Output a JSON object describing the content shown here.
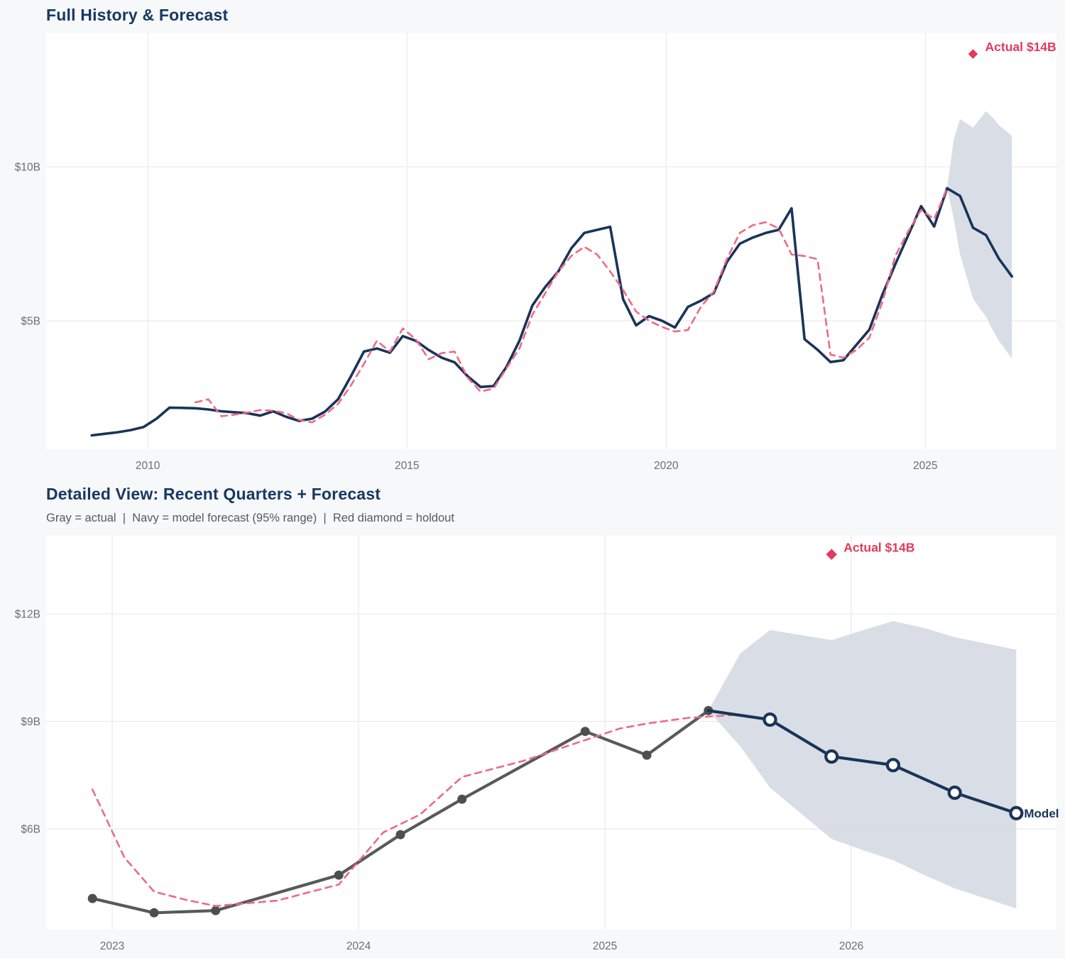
{
  "colors": {
    "page_bg": "#f7f8fa",
    "plot_bg": "#ffffff",
    "grid": "#e4e6e9",
    "navy": "#1a3458",
    "pink": "#ee6a87",
    "crimson": "#e23a5c",
    "gray_line": "#58595b",
    "gray_dot": "#4d4e50",
    "band": "#d4dae3",
    "title": "#173861",
    "subtitle": "#545a60",
    "tick": "#6a6f74"
  },
  "chart_data": [
    {
      "type": "line",
      "title": "Full History & Forecast",
      "xlabel": "",
      "ylabel": "",
      "grid": true,
      "legend_position": "none",
      "xlim": [
        2008.04,
        2027.53
      ],
      "ylim": [
        0.83,
        14.33
      ],
      "xticks": [
        2010,
        2015,
        2020,
        2025
      ],
      "xtick_labels": [
        "2010",
        "2015",
        "2020",
        "2025"
      ],
      "yticks": [
        5,
        10
      ],
      "ytick_labels": [
        "$5B",
        "$10B"
      ],
      "annotation": {
        "label": "Actual $14B",
        "x": 2025.92,
        "y": 13.66
      },
      "series": [
        {
          "name": "actual-history",
          "color_key": "navy",
          "style": "solid",
          "markers": "none",
          "points": [
            [
              2008.92,
              1.28
            ],
            [
              2009.17,
              1.33
            ],
            [
              2009.42,
              1.38
            ],
            [
              2009.67,
              1.45
            ],
            [
              2009.92,
              1.55
            ],
            [
              2010.17,
              1.82
            ],
            [
              2010.42,
              2.18
            ],
            [
              2010.67,
              2.17
            ],
            [
              2010.92,
              2.16
            ],
            [
              2011.17,
              2.12
            ],
            [
              2011.42,
              2.06
            ],
            [
              2011.67,
              2.03
            ],
            [
              2011.92,
              2.0
            ],
            [
              2012.17,
              1.92
            ],
            [
              2012.42,
              2.06
            ],
            [
              2012.67,
              1.88
            ],
            [
              2012.92,
              1.75
            ],
            [
              2013.17,
              1.82
            ],
            [
              2013.42,
              2.05
            ],
            [
              2013.67,
              2.45
            ],
            [
              2013.92,
              3.2
            ],
            [
              2014.17,
              4.0
            ],
            [
              2014.42,
              4.1
            ],
            [
              2014.67,
              3.96
            ],
            [
              2014.92,
              4.5
            ],
            [
              2015.17,
              4.35
            ],
            [
              2015.42,
              4.05
            ],
            [
              2015.67,
              3.8
            ],
            [
              2015.92,
              3.65
            ],
            [
              2016.17,
              3.2
            ],
            [
              2016.42,
              2.85
            ],
            [
              2016.67,
              2.88
            ],
            [
              2016.92,
              3.5
            ],
            [
              2017.17,
              4.35
            ],
            [
              2017.42,
              5.5
            ],
            [
              2017.67,
              6.1
            ],
            [
              2017.92,
              6.6
            ],
            [
              2018.17,
              7.35
            ],
            [
              2018.42,
              7.85
            ],
            [
              2018.67,
              7.95
            ],
            [
              2018.92,
              8.05
            ],
            [
              2019.17,
              5.7
            ],
            [
              2019.42,
              4.85
            ],
            [
              2019.67,
              5.15
            ],
            [
              2019.92,
              5.0
            ],
            [
              2020.17,
              4.78
            ],
            [
              2020.42,
              5.45
            ],
            [
              2020.67,
              5.65
            ],
            [
              2020.92,
              5.9
            ],
            [
              2021.17,
              6.9
            ],
            [
              2021.42,
              7.5
            ],
            [
              2021.67,
              7.7
            ],
            [
              2021.92,
              7.85
            ],
            [
              2022.17,
              7.95
            ],
            [
              2022.42,
              8.65
            ],
            [
              2022.67,
              4.4
            ],
            [
              2022.92,
              4.06
            ],
            [
              2023.17,
              3.66
            ],
            [
              2023.42,
              3.72
            ],
            [
              2023.92,
              4.71
            ],
            [
              2024.17,
              5.84
            ],
            [
              2024.42,
              6.83
            ],
            [
              2024.92,
              8.72
            ],
            [
              2025.17,
              8.06
            ],
            [
              2025.42,
              9.3
            ]
          ]
        },
        {
          "name": "model-fit",
          "color_key": "pink",
          "style": "dashed",
          "markers": "none",
          "points": [
            [
              2010.92,
              2.35
            ],
            [
              2011.17,
              2.45
            ],
            [
              2011.42,
              1.9
            ],
            [
              2011.67,
              1.95
            ],
            [
              2011.92,
              2.02
            ],
            [
              2012.17,
              2.1
            ],
            [
              2012.42,
              2.08
            ],
            [
              2012.67,
              2.0
            ],
            [
              2012.92,
              1.78
            ],
            [
              2013.17,
              1.7
            ],
            [
              2013.42,
              1.95
            ],
            [
              2013.67,
              2.3
            ],
            [
              2013.92,
              2.9
            ],
            [
              2014.17,
              3.6
            ],
            [
              2014.42,
              4.35
            ],
            [
              2014.67,
              4.0
            ],
            [
              2014.92,
              4.75
            ],
            [
              2015.17,
              4.4
            ],
            [
              2015.42,
              3.75
            ],
            [
              2015.67,
              3.95
            ],
            [
              2015.92,
              4.0
            ],
            [
              2016.17,
              3.15
            ],
            [
              2016.42,
              2.7
            ],
            [
              2016.67,
              2.8
            ],
            [
              2016.92,
              3.45
            ],
            [
              2017.17,
              4.1
            ],
            [
              2017.42,
              5.2
            ],
            [
              2017.67,
              5.9
            ],
            [
              2017.92,
              6.6
            ],
            [
              2018.17,
              7.1
            ],
            [
              2018.42,
              7.4
            ],
            [
              2018.67,
              7.15
            ],
            [
              2018.92,
              6.6
            ],
            [
              2019.17,
              6.0
            ],
            [
              2019.42,
              5.3
            ],
            [
              2019.67,
              5.0
            ],
            [
              2019.92,
              4.8
            ],
            [
              2020.17,
              4.65
            ],
            [
              2020.42,
              4.7
            ],
            [
              2020.67,
              5.45
            ],
            [
              2020.92,
              5.95
            ],
            [
              2021.17,
              7.0
            ],
            [
              2021.42,
              7.85
            ],
            [
              2021.67,
              8.1
            ],
            [
              2021.92,
              8.2
            ],
            [
              2022.17,
              8.0
            ],
            [
              2022.42,
              7.15
            ],
            [
              2022.67,
              7.1
            ],
            [
              2022.92,
              7.0
            ],
            [
              2023.17,
              3.9
            ],
            [
              2023.42,
              3.8
            ],
            [
              2023.67,
              4.05
            ],
            [
              2023.92,
              4.45
            ],
            [
              2024.17,
              5.6
            ],
            [
              2024.42,
              7.1
            ],
            [
              2024.67,
              7.9
            ],
            [
              2024.92,
              8.6
            ],
            [
              2025.17,
              8.3
            ],
            [
              2025.42,
              9.3
            ]
          ]
        },
        {
          "name": "model-forecast",
          "color_key": "navy",
          "style": "solid",
          "markers": "none",
          "points": [
            [
              2025.42,
              9.3
            ],
            [
              2025.67,
              9.05
            ],
            [
              2025.92,
              8.02
            ],
            [
              2026.17,
              7.78
            ],
            [
              2026.42,
              7.01
            ],
            [
              2026.67,
              6.44
            ]
          ]
        }
      ],
      "band": {
        "name": "forecast-95-range",
        "x": [
          2025.42,
          2025.55,
          2025.67,
          2025.92,
          2026.05,
          2026.17,
          2026.3,
          2026.42,
          2026.55,
          2026.67
        ],
        "upper": [
          9.3,
          10.9,
          11.55,
          11.27,
          11.55,
          11.8,
          11.6,
          11.35,
          11.17,
          11.0
        ],
        "lower": [
          9.3,
          8.3,
          7.15,
          5.72,
          5.4,
          5.13,
          4.7,
          4.34,
          4.05,
          3.78
        ]
      }
    },
    {
      "type": "line",
      "title": "Detailed View: Recent Quarters + Forecast",
      "subtitle": "Gray = actual  |  Navy = model forecast (95% range)  |  Red diamond = holdout",
      "xlabel": "",
      "ylabel": "",
      "grid": true,
      "legend_position": "none",
      "xlim": [
        2022.732,
        2026.833
      ],
      "ylim": [
        3.19,
        14.18
      ],
      "xticks": [
        2023,
        2024,
        2025,
        2026
      ],
      "xtick_labels": [
        "2023",
        "2024",
        "2025",
        "2026"
      ],
      "yticks": [
        6,
        9,
        12
      ],
      "ytick_labels": [
        "$6B",
        "$9B",
        "$12B"
      ],
      "annotation": {
        "label": "Actual $14B",
        "x": 2025.92,
        "y": 13.66
      },
      "model_label": "Model",
      "series": [
        {
          "name": "actual-quarters",
          "color_key": "gray_line",
          "style": "solid",
          "markers": "dots",
          "points": [
            [
              2022.92,
              4.06
            ],
            [
              2023.17,
              3.66
            ],
            [
              2023.42,
              3.72
            ],
            [
              2023.92,
              4.71
            ],
            [
              2024.17,
              5.84
            ],
            [
              2024.42,
              6.83
            ],
            [
              2024.92,
              8.72
            ],
            [
              2025.17,
              8.06
            ],
            [
              2025.42,
              9.3
            ]
          ]
        },
        {
          "name": "model-fit",
          "color_key": "pink",
          "style": "dashed",
          "markers": "none",
          "points": [
            [
              2022.92,
              7.1
            ],
            [
              2023.05,
              5.2
            ],
            [
              2023.17,
              4.25
            ],
            [
              2023.3,
              4.02
            ],
            [
              2023.42,
              3.85
            ],
            [
              2023.67,
              4.0
            ],
            [
              2023.92,
              4.45
            ],
            [
              2024.1,
              5.9
            ],
            [
              2024.25,
              6.4
            ],
            [
              2024.42,
              7.45
            ],
            [
              2024.67,
              7.9
            ],
            [
              2024.92,
              8.48
            ],
            [
              2025.06,
              8.8
            ],
            [
              2025.17,
              8.94
            ],
            [
              2025.34,
              9.1
            ],
            [
              2025.53,
              9.18
            ]
          ]
        },
        {
          "name": "model-forecast",
          "color_key": "navy",
          "style": "solid",
          "markers": "open-circles",
          "points": [
            [
              2025.42,
              9.3
            ],
            [
              2025.67,
              9.05
            ],
            [
              2025.92,
              8.02
            ],
            [
              2026.17,
              7.78
            ],
            [
              2026.42,
              7.01
            ],
            [
              2026.67,
              6.44
            ]
          ]
        }
      ],
      "band": {
        "name": "forecast-95-range",
        "x": [
          2025.42,
          2025.55,
          2025.67,
          2025.92,
          2026.05,
          2026.17,
          2026.3,
          2026.42,
          2026.55,
          2026.67
        ],
        "upper": [
          9.3,
          10.9,
          11.55,
          11.27,
          11.55,
          11.8,
          11.6,
          11.35,
          11.17,
          11.0
        ],
        "lower": [
          9.3,
          8.3,
          7.15,
          5.72,
          5.4,
          5.13,
          4.7,
          4.34,
          4.05,
          3.78
        ]
      }
    }
  ]
}
